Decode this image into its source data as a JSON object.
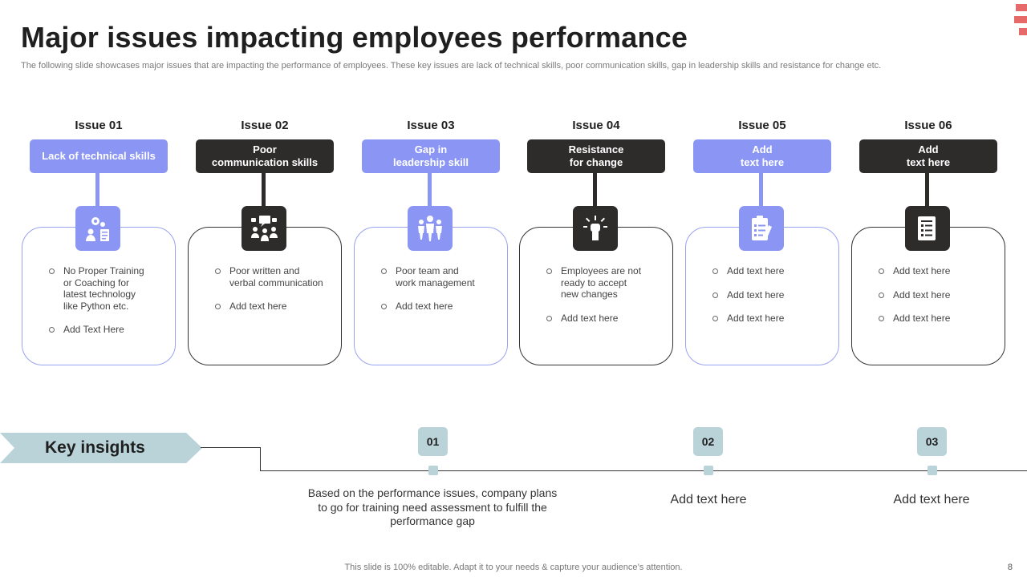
{
  "title": "Major issues impacting employees performance",
  "subtitle": "The following slide showcases major issues that are impacting the performance of employees. These key issues are lack of technical skills, poor communication skills, gap in leadership skills and resistance for change etc.",
  "colors": {
    "blue": "#8b96f4",
    "dark": "#2e2b2b",
    "insight": "#b9d3d9",
    "accent": "#e76a6a"
  },
  "issues": [
    {
      "heading": "Issue 01",
      "label": "Lack of technical skills",
      "icon": "training-gears-icon",
      "bullets": [
        "No Proper Training\nor Coaching for\nlatest technology\nlike Python etc.",
        "Add Text Here"
      ]
    },
    {
      "heading": "Issue 02",
      "label": "Poor\ncommunication skills",
      "icon": "team-communication-icon",
      "bullets": [
        "Poor written and\nverbal communication",
        "Add text here"
      ]
    },
    {
      "heading": "Issue 03",
      "label": "Gap in\nleadership skill",
      "icon": "team-leader-icon",
      "bullets": [
        "Poor team and\nwork management",
        "Add text here"
      ]
    },
    {
      "heading": "Issue 04",
      "label": "Resistance\nfor change",
      "icon": "raised-fist-icon",
      "bullets": [
        "Employees are not\nready to accept\nnew changes",
        "Add text here"
      ]
    },
    {
      "heading": "Issue 05",
      "label": "Add\ntext here",
      "icon": "clipboard-checklist-icon",
      "bullets": [
        "Add text here",
        "Add text here",
        "Add text here"
      ]
    },
    {
      "heading": "Issue 06",
      "label": "Add\ntext here",
      "icon": "document-list-icon",
      "bullets": [
        "Add text here",
        "Add text here",
        "Add text here"
      ]
    }
  ],
  "key_insights": {
    "label": "Key insights",
    "items": [
      {
        "number": "01",
        "text": "Based on the performance issues, company plans\nto go for training  need assessment to fulfill the\nperformance gap"
      },
      {
        "number": "02",
        "text": "Add text here"
      },
      {
        "number": "03",
        "text": "Add text here"
      }
    ]
  },
  "footer": "This slide is 100% editable. Adapt it to your needs & capture your audience’s attention.",
  "page_number": "8"
}
